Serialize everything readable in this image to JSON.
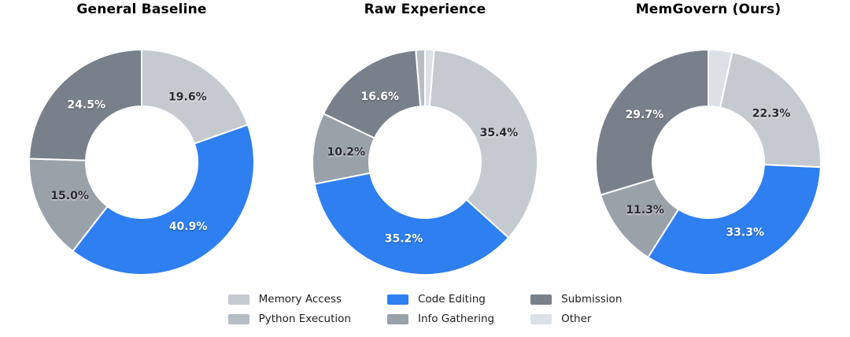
{
  "page": {
    "background": "#ffffff"
  },
  "colors": {
    "Memory Access": "#c5cad1",
    "Python Execution": "#b6bdc5",
    "Code Editing": "#2e7ff0",
    "Info Gathering": "#99a1a9",
    "Submission": "#78808b",
    "Other": "#dce1e7"
  },
  "pct_text_colors": {
    "Code Editing": "light",
    "Submission": "light",
    "default": "dark"
  },
  "legend": {
    "position": "bottom",
    "items": [
      {
        "label": "Memory Access",
        "color": "#c5cad1"
      },
      {
        "label": "Python Execution",
        "color": "#b6bdc5"
      },
      {
        "label": "Code Editing",
        "color": "#2e7ff0"
      },
      {
        "label": "Info Gathering",
        "color": "#99a1a9"
      },
      {
        "label": "Submission",
        "color": "#78808b"
      },
      {
        "label": "Other",
        "color": "#dce1e7"
      }
    ]
  },
  "chart_data": [
    {
      "type": "pie",
      "subtype": "donut",
      "title": "General Baseline",
      "start_angle_deg": 0,
      "direction": "clockwise",
      "donut_hole_ratio": 0.5,
      "segments": [
        {
          "label": "Memory Access",
          "value": 19.6,
          "pct_label": "19.6%"
        },
        {
          "label": "Code Editing",
          "value": 40.9,
          "pct_label": "40.9%"
        },
        {
          "label": "Info Gathering",
          "value": 15.0,
          "pct_label": "15.0%"
        },
        {
          "label": "Submission",
          "value": 24.5,
          "pct_label": "24.5%"
        }
      ]
    },
    {
      "type": "pie",
      "subtype": "donut",
      "title": "Raw Experience",
      "start_angle_deg": 0,
      "direction": "clockwise",
      "donut_hole_ratio": 0.5,
      "segments": [
        {
          "label": "Other",
          "value": 1.3,
          "pct_label": ""
        },
        {
          "label": "Memory Access",
          "value": 35.4,
          "pct_label": "35.4%"
        },
        {
          "label": "Code Editing",
          "value": 35.2,
          "pct_label": "35.2%"
        },
        {
          "label": "Info Gathering",
          "value": 10.2,
          "pct_label": "10.2%"
        },
        {
          "label": "Submission",
          "value": 16.6,
          "pct_label": "16.6%"
        },
        {
          "label": "Python Execution",
          "value": 1.3,
          "pct_label": ""
        }
      ]
    },
    {
      "type": "pie",
      "subtype": "donut",
      "title": "MemGovern (Ours)",
      "start_angle_deg": 0,
      "direction": "clockwise",
      "donut_hole_ratio": 0.5,
      "segments": [
        {
          "label": "Other",
          "value": 3.4,
          "pct_label": ""
        },
        {
          "label": "Memory Access",
          "value": 22.3,
          "pct_label": "22.3%"
        },
        {
          "label": "Code Editing",
          "value": 33.3,
          "pct_label": "33.3%"
        },
        {
          "label": "Info Gathering",
          "value": 11.3,
          "pct_label": "11.3%"
        },
        {
          "label": "Submission",
          "value": 29.7,
          "pct_label": "29.7%"
        }
      ]
    }
  ]
}
